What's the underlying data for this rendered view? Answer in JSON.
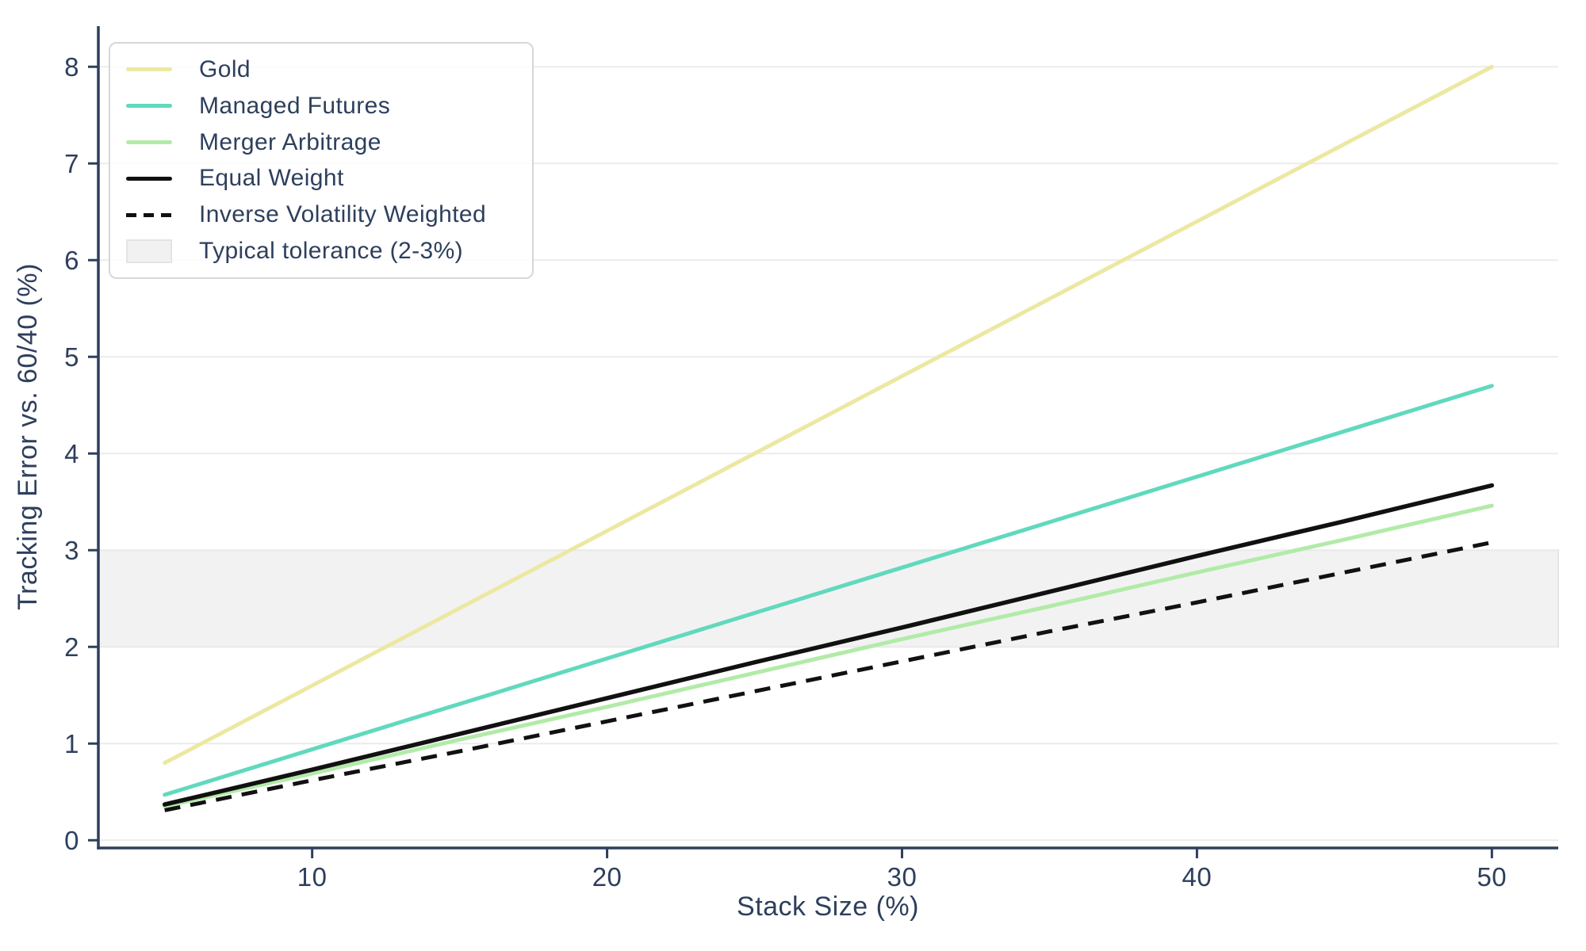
{
  "figure": {
    "background": "#ffffff",
    "text_color": "#2e3f5d",
    "grid_color": "#ececec",
    "spine_color": "#2e3f5d"
  },
  "chart_data": {
    "type": "line",
    "title": "",
    "xlabel": "Stack Size (%)",
    "ylabel": "Tracking Error vs. 60/40 (%)",
    "xlim": [
      2.75,
      52.25
    ],
    "ylim": [
      -0.08,
      8.42
    ],
    "x_ticks": [
      10,
      20,
      30,
      40,
      50
    ],
    "y_ticks": [
      0,
      1,
      2,
      3,
      4,
      5,
      6,
      7,
      8
    ],
    "grid": "horizontal",
    "legend_position": "upper-left",
    "x": [
      5,
      10,
      15,
      20,
      25,
      30,
      35,
      40,
      45,
      50
    ],
    "series": [
      {
        "name": "Gold",
        "color": "#ece8a2",
        "style": "solid",
        "width": 5,
        "values": [
          0.8,
          1.6,
          2.4,
          3.2,
          4.0,
          4.8,
          5.6,
          6.4,
          7.2,
          8.0
        ]
      },
      {
        "name": "Managed Futures",
        "color": "#60d9bd",
        "style": "solid",
        "width": 5,
        "values": [
          0.47,
          0.94,
          1.41,
          1.88,
          2.35,
          2.82,
          3.29,
          3.76,
          4.23,
          4.7
        ]
      },
      {
        "name": "Merger Arbitrage",
        "color": "#b2eba8",
        "style": "solid",
        "width": 5,
        "values": [
          0.35,
          0.69,
          1.04,
          1.38,
          1.73,
          2.08,
          2.42,
          2.77,
          3.11,
          3.46
        ]
      },
      {
        "name": "Equal Weight",
        "color": "#111111",
        "style": "solid",
        "width": 5.5,
        "values": [
          0.37,
          0.73,
          1.1,
          1.47,
          1.84,
          2.2,
          2.57,
          2.94,
          3.3,
          3.67
        ]
      },
      {
        "name": "Inverse Volatility Weighted",
        "color": "#111111",
        "style": "dashed",
        "width": 5,
        "values": [
          0.31,
          0.62,
          0.92,
          1.23,
          1.54,
          1.85,
          2.16,
          2.46,
          2.77,
          3.08
        ]
      }
    ],
    "band": {
      "label": "Typical tolerance (2-3%)",
      "from": 2,
      "to": 3,
      "fill": "#f2f2f2",
      "edge": "#e4e4e4"
    }
  },
  "legend": {
    "items": [
      {
        "label": "Gold",
        "swatch": "line",
        "color": "#ece8a2"
      },
      {
        "label": "Managed Futures",
        "swatch": "line",
        "color": "#60d9bd"
      },
      {
        "label": "Merger Arbitrage",
        "swatch": "line",
        "color": "#b2eba8"
      },
      {
        "label": "Equal Weight",
        "swatch": "line",
        "color": "#111111"
      },
      {
        "label": "Inverse Volatility Weighted",
        "swatch": "dashed-line",
        "color": "#111111"
      },
      {
        "label": "Typical tolerance (2-3%)",
        "swatch": "rect",
        "color": "#f1f1f1"
      }
    ]
  }
}
